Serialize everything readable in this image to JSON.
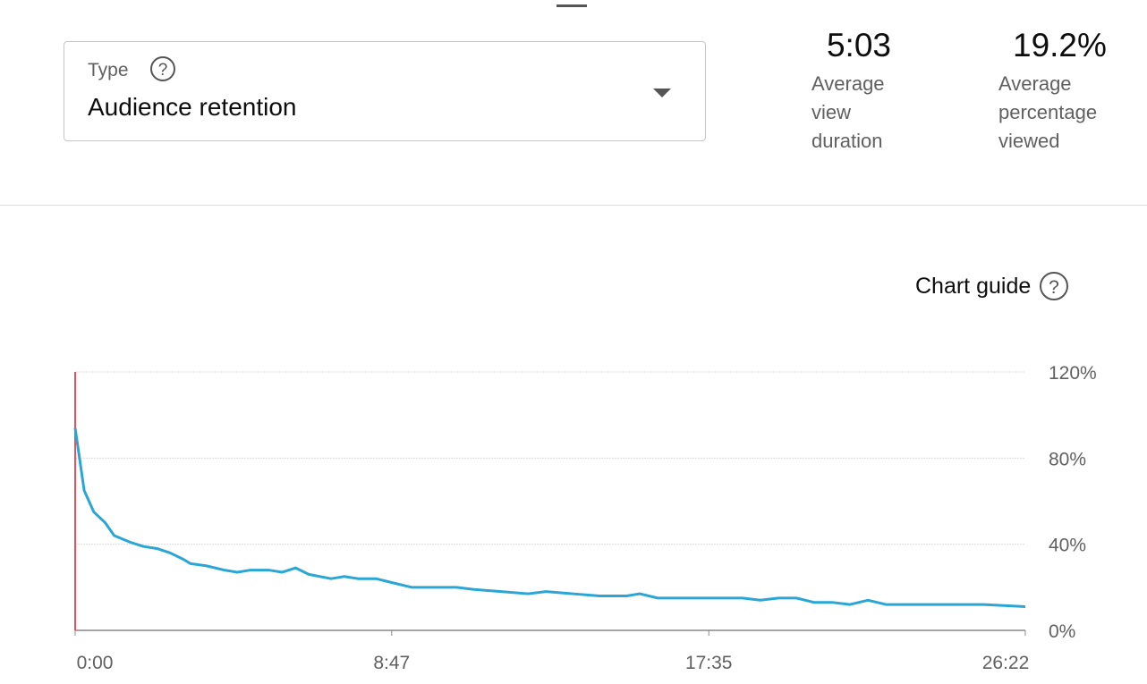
{
  "type_select": {
    "label": "Type",
    "value": "Audience retention"
  },
  "metrics": [
    {
      "value": "5:03",
      "label": "Average view duration"
    },
    {
      "value": "19.2%",
      "label": "Average percentage viewed"
    }
  ],
  "chart_guide": "Chart guide",
  "chart_data": {
    "type": "line",
    "x": [
      0,
      15,
      31,
      50,
      65,
      91,
      113,
      136,
      158,
      180,
      192,
      218,
      248,
      270,
      292,
      322,
      345,
      367,
      389,
      426,
      448,
      471,
      501,
      530,
      560,
      605,
      635,
      664,
      709,
      754,
      784,
      828,
      873,
      918,
      940,
      970,
      1037,
      1111,
      1141,
      1171,
      1201,
      1230,
      1260,
      1290,
      1320,
      1350,
      1409,
      1484,
      1513,
      1582
    ],
    "series": [
      {
        "color": "#2aa6d5",
        "values": [
          94,
          65,
          55,
          50,
          44,
          41,
          39,
          38,
          36,
          33,
          31,
          30,
          28,
          27,
          28,
          28,
          27,
          29,
          26,
          24,
          25,
          24,
          24,
          22,
          20,
          20,
          20,
          19,
          18,
          17,
          18,
          17,
          16,
          16,
          17,
          15,
          15,
          15,
          14,
          15,
          15,
          13,
          13,
          12,
          14,
          12,
          12,
          12,
          12,
          11
        ]
      }
    ],
    "xlim": [
      0,
      1582
    ],
    "xticks": [
      {
        "value": 0,
        "label": "0:00"
      },
      {
        "value": 527,
        "label": "8:47"
      },
      {
        "value": 1055,
        "label": "17:35"
      },
      {
        "value": 1582,
        "label": "26:22"
      }
    ],
    "ylim": [
      0,
      120
    ],
    "yticks": [
      {
        "value": 0,
        "label": "0%"
      },
      {
        "value": 40,
        "label": "40%"
      },
      {
        "value": 80,
        "label": "80%"
      },
      {
        "value": 120,
        "label": "120%"
      }
    ],
    "grid": true
  }
}
